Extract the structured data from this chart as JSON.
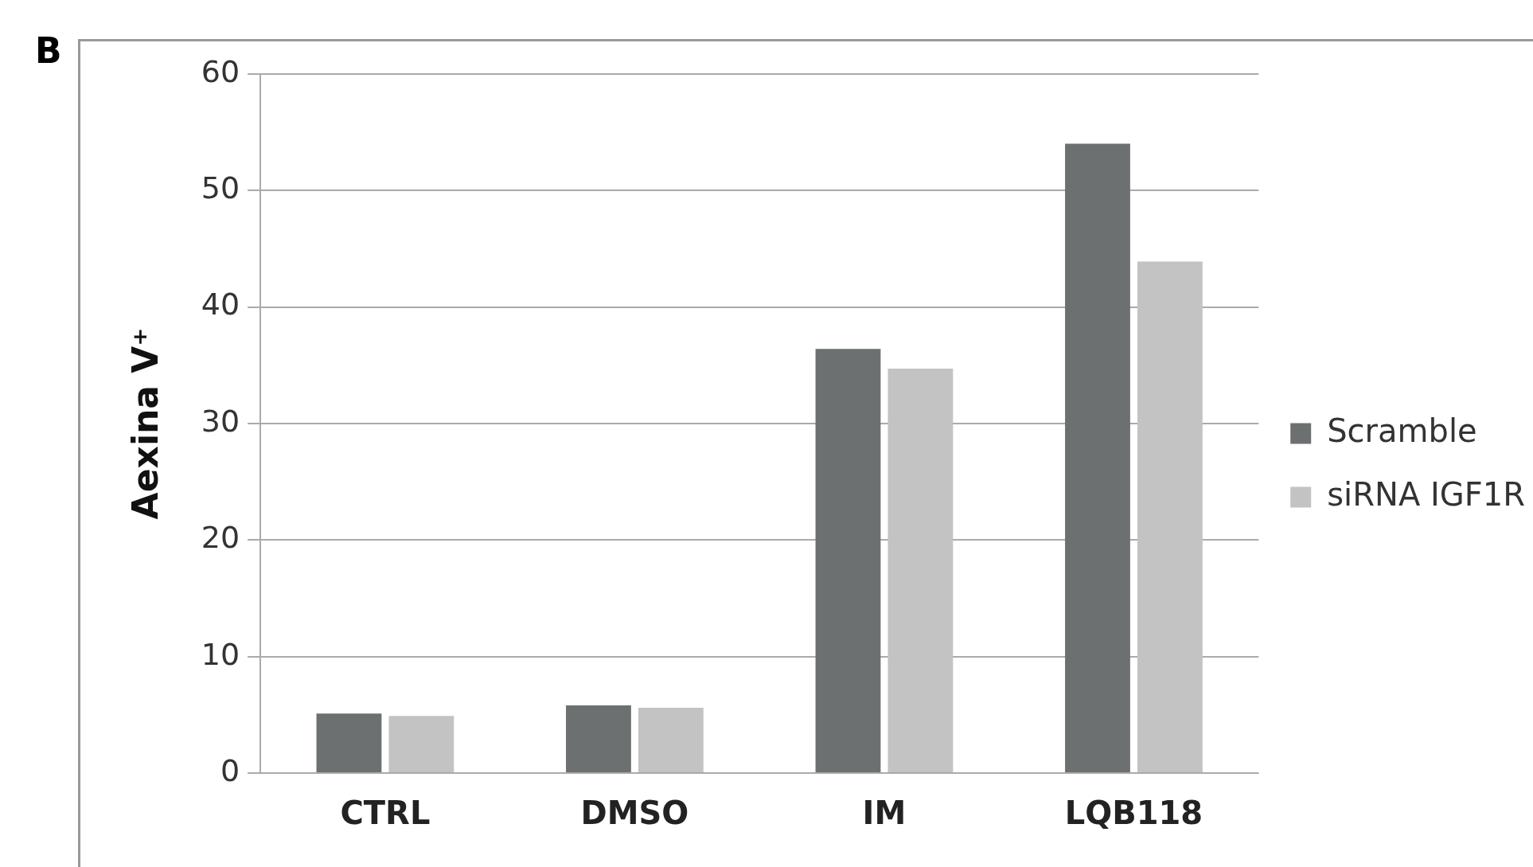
{
  "chart_data": {
    "type": "bar",
    "ylabel": "Aexina V⁺",
    "categories": [
      "CTRL",
      "DMSO",
      "IM",
      "LQB118"
    ],
    "series": [
      {
        "name": "Scramble",
        "color": "#6d7070",
        "values": [
          5.1,
          5.8,
          36.4,
          54.0
        ]
      },
      {
        "name": "siRNA IGF1R",
        "color": "#c3c3c3",
        "values": [
          4.9,
          5.6,
          34.7,
          43.9
        ]
      }
    ],
    "ylim": [
      0,
      60
    ],
    "yticks": [
      0,
      10,
      20,
      30,
      40,
      50,
      60
    ],
    "grid": "y",
    "legend": "right",
    "annotations": [
      "B"
    ]
  }
}
